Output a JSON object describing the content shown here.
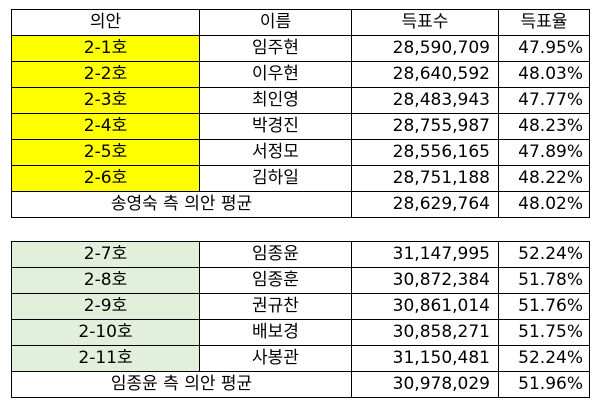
{
  "colors": {
    "highlight_yellow": "#FFFF00",
    "highlight_green": "#E2EFDA",
    "border": "#000000"
  },
  "table1": {
    "headers": [
      "의안",
      "이름",
      "득표수",
      "득표율"
    ],
    "rows": [
      {
        "motion": "2-1호",
        "name": "임주현",
        "votes": "28,590,709",
        "rate": "47.95%"
      },
      {
        "motion": "2-2호",
        "name": "이우현",
        "votes": "28,640,592",
        "rate": "48.03%"
      },
      {
        "motion": "2-3호",
        "name": "최인영",
        "votes": "28,483,943",
        "rate": "47.77%"
      },
      {
        "motion": "2-4호",
        "name": "박경진",
        "votes": "28,755,987",
        "rate": "48.23%"
      },
      {
        "motion": "2-5호",
        "name": "서정모",
        "votes": "28,556,165",
        "rate": "47.89%"
      },
      {
        "motion": "2-6호",
        "name": "김하일",
        "votes": "28,751,188",
        "rate": "48.22%"
      }
    ],
    "average": {
      "label": "송영숙 측 의안 평균",
      "votes": "28,629,764",
      "rate": "48.02%"
    }
  },
  "table2": {
    "rows": [
      {
        "motion": "2-7호",
        "name": "임종윤",
        "votes": "31,147,995",
        "rate": "52.24%"
      },
      {
        "motion": "2-8호",
        "name": "임종훈",
        "votes": "30,872,384",
        "rate": "51.78%"
      },
      {
        "motion": "2-9호",
        "name": "권규찬",
        "votes": "30,861,014",
        "rate": "51.76%"
      },
      {
        "motion": "2-10호",
        "name": "배보경",
        "votes": "30,858,271",
        "rate": "51.75%"
      },
      {
        "motion": "2-11호",
        "name": "사봉관",
        "votes": "31,150,481",
        "rate": "52.24%"
      }
    ],
    "average": {
      "label": "임종윤 측 의안 평균",
      "votes": "30,978,029",
      "rate": "51.96%"
    }
  }
}
